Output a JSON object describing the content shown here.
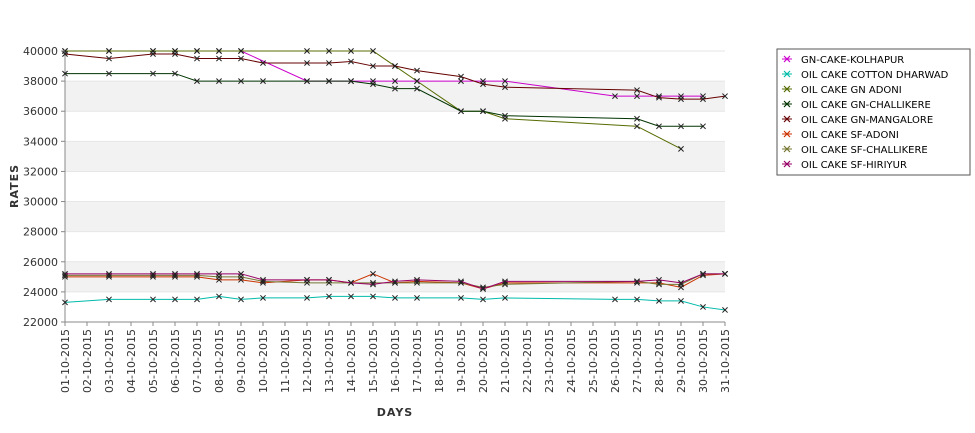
{
  "chart_data": {
    "type": "line",
    "title": "",
    "xlabel": "DAYS",
    "ylabel": "RATES",
    "ylim": [
      22000,
      40000
    ],
    "y_ticks": [
      22000,
      24000,
      26000,
      28000,
      30000,
      32000,
      34000,
      36000,
      38000,
      40000
    ],
    "grid": "alternating horizontal bands",
    "legend_position": "right",
    "categories": [
      "01-10-2015",
      "02-10-2015",
      "03-10-2015",
      "04-10-2015",
      "05-10-2015",
      "06-10-2015",
      "07-10-2015",
      "08-10-2015",
      "09-10-2015",
      "10-10-2015",
      "11-10-2015",
      "12-10-2015",
      "13-10-2015",
      "14-10-2015",
      "15-10-2015",
      "16-10-2015",
      "17-10-2015",
      "18-10-2015",
      "19-10-2015",
      "20-10-2015",
      "21-10-2015",
      "22-10-2015",
      "23-10-2015",
      "24-10-2015",
      "25-10-2015",
      "26-10-2015",
      "27-10-2015",
      "28-10-2015",
      "29-10-2015",
      "30-10-2015",
      "31-10-2015"
    ],
    "series": [
      {
        "name": "GN-CAKE-KOLHAPUR",
        "color": "#cc00cc",
        "values": [
          40000,
          null,
          40000,
          null,
          40000,
          40000,
          40000,
          40000,
          40000,
          null,
          null,
          38000,
          38000,
          38000,
          38000,
          38000,
          38000,
          null,
          38000,
          38000,
          38000,
          null,
          null,
          null,
          null,
          37000,
          37000,
          37000,
          37000,
          37000,
          null
        ]
      },
      {
        "name": "OIL CAKE COTTON DHARWAD",
        "color": "#00bbaa",
        "values": [
          23300,
          null,
          23500,
          null,
          23500,
          23500,
          23500,
          23700,
          23500,
          23600,
          null,
          23600,
          23700,
          23700,
          23700,
          23600,
          23600,
          null,
          23600,
          23500,
          23600,
          null,
          null,
          null,
          null,
          23500,
          23500,
          23400,
          23400,
          23000,
          22800
        ]
      },
      {
        "name": "OIL CAKE GN ADONI",
        "color": "#556b00",
        "values": [
          40000,
          null,
          40000,
          null,
          40000,
          40000,
          40000,
          40000,
          40000,
          null,
          null,
          40000,
          40000,
          40000,
          40000,
          39000,
          38000,
          null,
          36000,
          36000,
          35500,
          null,
          null,
          null,
          null,
          null,
          35000,
          null,
          33500,
          null,
          null
        ]
      },
      {
        "name": "OIL CAKE GN-CHALLIKERE",
        "color": "#003300",
        "values": [
          38500,
          null,
          38500,
          null,
          38500,
          38500,
          38000,
          38000,
          38000,
          38000,
          null,
          38000,
          38000,
          38000,
          37800,
          37500,
          37500,
          null,
          36000,
          36000,
          35700,
          null,
          null,
          null,
          null,
          null,
          35500,
          35000,
          35000,
          35000,
          null
        ]
      },
      {
        "name": "OIL CAKE GN-MANGALORE",
        "color": "#660000",
        "values": [
          39800,
          null,
          39500,
          null,
          39800,
          39800,
          39500,
          39500,
          39500,
          39200,
          null,
          39200,
          39200,
          39300,
          39000,
          39000,
          38700,
          null,
          38300,
          37800,
          37600,
          null,
          null,
          null,
          null,
          null,
          37400,
          36900,
          36800,
          36800,
          37000
        ]
      },
      {
        "name": "OIL CAKE SF-ADONI",
        "color": "#cc3300",
        "values": [
          25000,
          null,
          25000,
          null,
          25000,
          25000,
          25000,
          24800,
          24800,
          24600,
          null,
          24800,
          24800,
          24600,
          25200,
          24600,
          24700,
          null,
          24600,
          24200,
          24600,
          null,
          null,
          null,
          null,
          null,
          24600,
          24600,
          24300,
          25100,
          25200
        ]
      },
      {
        "name": "OIL CAKE SF-CHALLIKERE",
        "color": "#777733",
        "values": [
          25100,
          null,
          25100,
          null,
          25100,
          25100,
          25100,
          25000,
          25000,
          24700,
          null,
          24600,
          24600,
          24600,
          24600,
          24600,
          24600,
          null,
          24600,
          24300,
          24500,
          null,
          null,
          null,
          null,
          null,
          24700,
          24500,
          24500,
          25200,
          25200
        ]
      },
      {
        "name": "OIL CAKE SF-HIRIYUR",
        "color": "#990066",
        "values": [
          25200,
          null,
          25200,
          null,
          25200,
          25200,
          25200,
          25200,
          25200,
          24800,
          null,
          24800,
          24800,
          24600,
          24500,
          24700,
          24800,
          null,
          24700,
          24200,
          24700,
          null,
          null,
          null,
          null,
          null,
          24700,
          24800,
          24600,
          25200,
          25200
        ]
      }
    ]
  }
}
